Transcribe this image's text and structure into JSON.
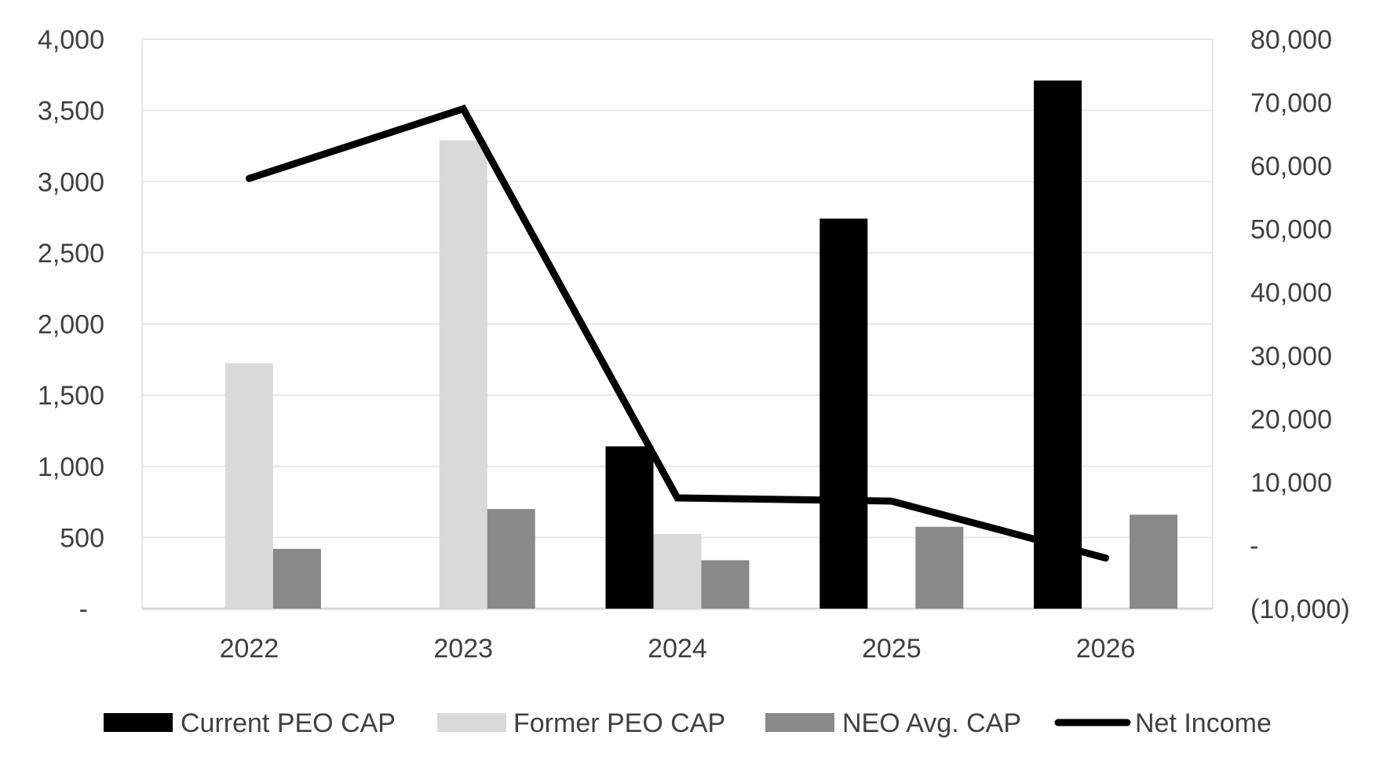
{
  "chart_data": {
    "type": "bar",
    "categories": [
      "2022",
      "2023",
      "2024",
      "2025",
      "2026"
    ],
    "series": [
      {
        "name": "Current PEO CAP",
        "type": "bar",
        "axis": "left",
        "color": "#000000",
        "values": [
          0,
          0,
          1140,
          2740,
          3710
        ]
      },
      {
        "name": "Former PEO CAP",
        "type": "bar",
        "axis": "left",
        "color": "#d9d9d9",
        "values": [
          1725,
          3290,
          525,
          0,
          0
        ]
      },
      {
        "name": "NEO Avg. CAP",
        "type": "bar",
        "axis": "left",
        "color": "#898989",
        "values": [
          420,
          700,
          340,
          575,
          660
        ]
      },
      {
        "name": "Net Income",
        "type": "line",
        "axis": "right",
        "color": "#000000",
        "values": [
          58000,
          69000,
          7500,
          7000,
          -2000
        ]
      }
    ],
    "left_axis": {
      "ylim": [
        0,
        4000
      ],
      "ticks": [
        0,
        500,
        1000,
        1500,
        2000,
        2500,
        3000,
        3500,
        4000
      ],
      "tick_labels": [
        "-",
        "500",
        "1,000",
        "1,500",
        "2,000",
        "2,500",
        "3,000",
        "3,500",
        "4,000"
      ]
    },
    "right_axis": {
      "ylim": [
        -10000,
        80000
      ],
      "ticks": [
        -10000,
        0,
        10000,
        20000,
        30000,
        40000,
        50000,
        60000,
        70000,
        80000
      ],
      "tick_labels": [
        "(10,000)",
        "-",
        "10,000",
        "20,000",
        "30,000",
        "40,000",
        "50,000",
        "60,000",
        "70,000",
        "80,000"
      ]
    },
    "grid": true,
    "legend_position": "bottom",
    "gridline_color": "#e6e6e6",
    "axis_line_color": "#d9d9d9",
    "text_color": "#404040"
  }
}
